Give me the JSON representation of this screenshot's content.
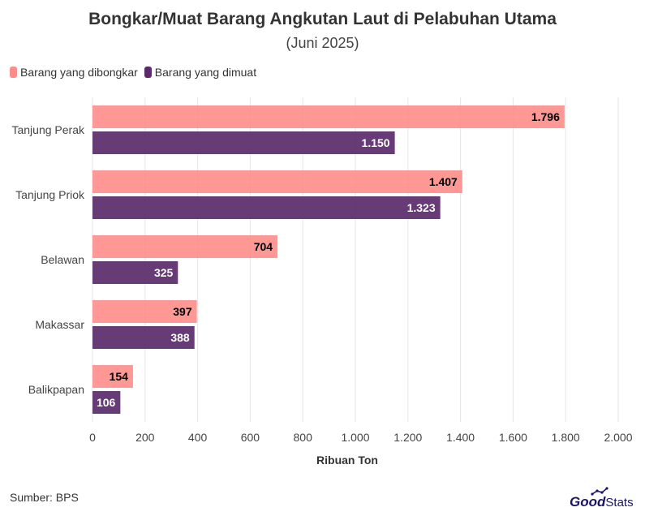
{
  "title": "Bongkar/Muat Barang Angkutan Laut di Pelabuhan Utama",
  "subtitle": "(Juni 2025)",
  "source": "Sumber: BPS",
  "logo": {
    "text": "GoodStats",
    "good": "Good",
    "stats": "Stats"
  },
  "colors": {
    "bongkar": "#fd8d88",
    "muat": "#5a2a6a",
    "label_on_bongkar": "#000000",
    "label_on_muat": "#ffffff",
    "grid": "#e6e6e6",
    "logo": "#1b1464"
  },
  "chart_data": {
    "type": "bar",
    "orientation": "horizontal",
    "categories": [
      "Tanjung Perak",
      "Tanjung Priok",
      "Belawan",
      "Makassar",
      "Balikpapan"
    ],
    "series": [
      {
        "name": "Barang yang dibongkar",
        "values": [
          1796,
          1407,
          704,
          397,
          154
        ],
        "labels": [
          "1.796",
          "1.407",
          "704",
          "397",
          "154"
        ]
      },
      {
        "name": "Barang yang dimuat",
        "values": [
          1150,
          1323,
          325,
          388,
          106
        ],
        "labels": [
          "1.150",
          "1.323",
          "325",
          "388",
          "106"
        ]
      }
    ],
    "xlabel": "Ribuan Ton",
    "ylabel": "",
    "xlim": [
      0,
      2000
    ],
    "ticks": [
      0,
      200,
      400,
      600,
      800,
      1000,
      1200,
      1400,
      1600,
      1800,
      2000
    ],
    "tick_labels": [
      "0",
      "200",
      "400",
      "600",
      "800",
      "1.000",
      "1.200",
      "1.400",
      "1.600",
      "1.800",
      "2.000"
    ],
    "grid": true,
    "legend_position": "top-left"
  }
}
